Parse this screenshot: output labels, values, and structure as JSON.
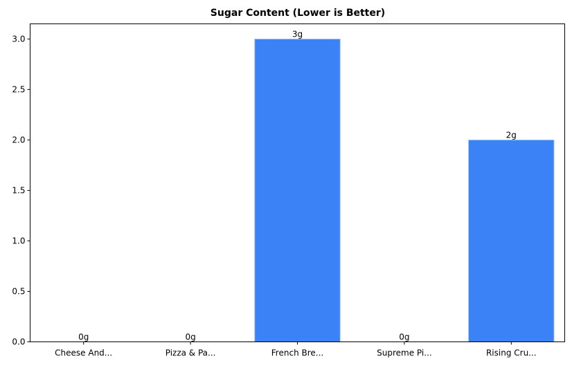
{
  "chart_data": {
    "type": "bar",
    "title": "Sugar Content (Lower is Better)",
    "xlabel": "",
    "ylabel": "",
    "categories": [
      "Cheese And...",
      "Pizza & Pa...",
      "French Bre...",
      "Supreme Pi...",
      "Rising Cru..."
    ],
    "values": [
      0,
      0,
      3,
      0,
      2
    ],
    "value_labels": [
      "0g",
      "0g",
      "3g",
      "0g",
      "2g"
    ],
    "yticks": [
      "0.0",
      "0.5",
      "1.0",
      "1.5",
      "2.0",
      "2.5",
      "3.0"
    ],
    "ylim": [
      0,
      3.15
    ],
    "grid": false,
    "legend": "none",
    "colors": {
      "bar": "#3b82f6",
      "bar_edge": "#a9c8f2"
    }
  }
}
